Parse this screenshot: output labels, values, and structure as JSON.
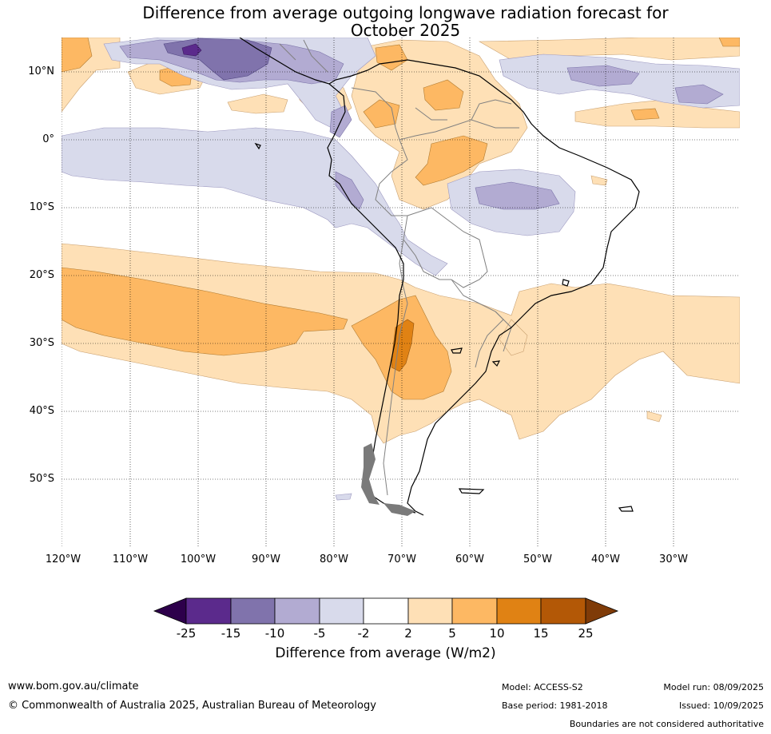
{
  "title_line1": "Difference from average outgoing longwave radiation forecast for",
  "title_line2": "October 2025",
  "lat_labels": [
    "10°N",
    "0°",
    "10°S",
    "20°S",
    "30°S",
    "40°S",
    "50°S"
  ],
  "lon_labels": [
    "120°W",
    "110°W",
    "100°W",
    "90°W",
    "80°W",
    "70°W",
    "60°W",
    "50°W",
    "40°W",
    "30°W"
  ],
  "colorbar": {
    "label": "Difference from average (W/m2)",
    "ticks": [
      "-25",
      "-15",
      "-10",
      "-5",
      "-2",
      "2",
      "5",
      "10",
      "15",
      "25"
    ],
    "colors": [
      "#2d004b",
      "#5b2a8c",
      "#8073ac",
      "#b2abd2",
      "#d8daeb",
      "#ffffff",
      "#fee0b6",
      "#fdb863",
      "#e08214",
      "#b35806",
      "#7f3b08"
    ]
  },
  "footer": {
    "website": "www.bom.gov.au/climate",
    "copyright": "© Commonwealth of Australia 2025, Australian Bureau of Meteorology",
    "model": "Model: ACCESS-S2",
    "base_period": "Base period: 1981-2018",
    "model_run": "Model run: 08/09/2025",
    "issued": "Issued: 10/09/2025",
    "disclaimer": "Boundaries are not considered authoritative"
  }
}
